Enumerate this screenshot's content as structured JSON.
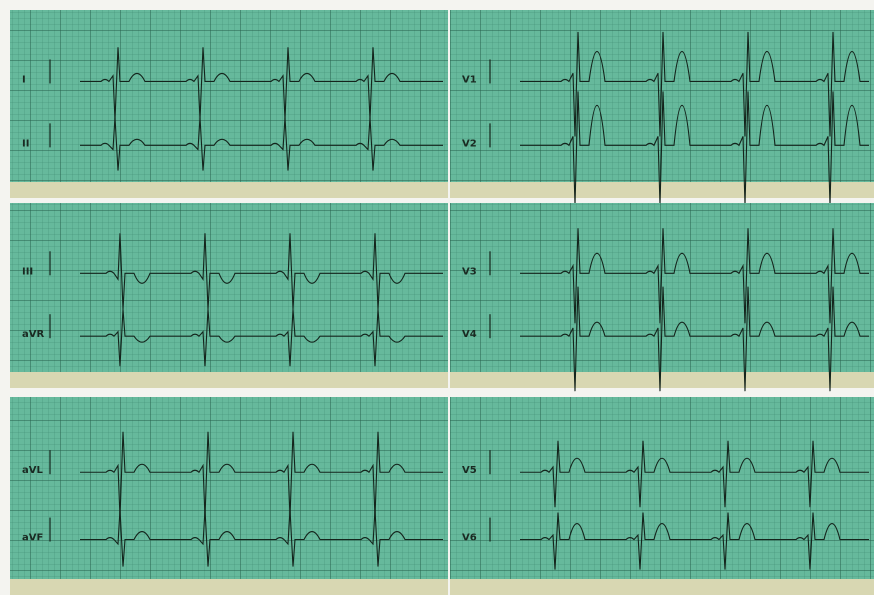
{
  "panels": [
    {
      "leads": [
        "I",
        "II"
      ]
    },
    {
      "leads": [
        "V1",
        "V2"
      ]
    },
    {
      "leads": [
        "III",
        "aVR"
      ]
    },
    {
      "leads": [
        "V3",
        "V4"
      ]
    },
    {
      "leads": [
        "aVL",
        "aVF"
      ]
    },
    {
      "leads": [
        "V5",
        "V6"
      ]
    }
  ]
}
